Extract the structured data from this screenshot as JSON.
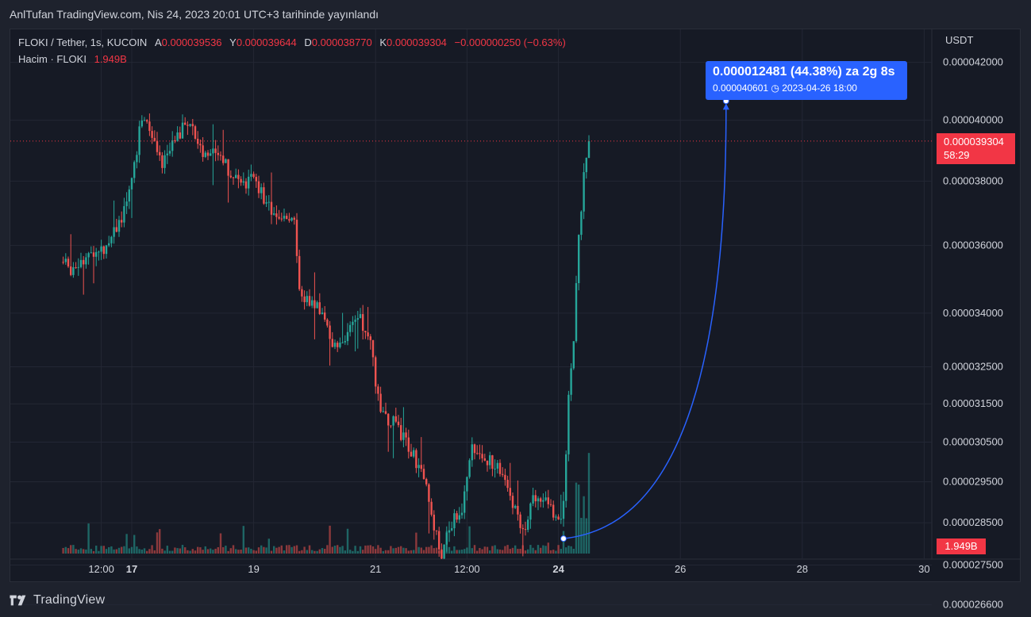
{
  "header": {
    "published_text": "AnlTufan TradingView.com, Nis 24, 2023 20:01 UTC+3 tarihinde yayınlandı"
  },
  "legend": {
    "symbol": "FLOKI / Tether, 1s, KUCOIN",
    "open_label": "A",
    "open_value": "0.000039536",
    "high_label": "Y",
    "high_value": "0.000039644",
    "low_label": "D",
    "low_value": "0.000038770",
    "close_label": "K",
    "close_value": "0.000039304",
    "change": "−0.000000250 (−0.63%)",
    "volume_label": "Hacim · FLOKI",
    "volume_value": "1.949B"
  },
  "price_axis": {
    "unit": "USDT",
    "current_price": "0.000039304",
    "countdown": "58:29",
    "volume_tag": "1.949B"
  },
  "tooltip": {
    "line1": "0.000012481 (44.38%) za 2g 8s",
    "line2": "0.000040601 ◷ 2023-04-26  18:00"
  },
  "footer": {
    "brand": "TradingView"
  },
  "colors": {
    "up": "#26a69a",
    "down": "#ef5350",
    "accent": "#2962ff",
    "price_line": "#f23645",
    "background": "#161a25",
    "grid": "#232734"
  },
  "chart_data": {
    "type": "candlestick",
    "symbol": "FLOKI / Tether",
    "interval": "1h",
    "exchange": "KUCOIN",
    "y_scale": "log",
    "y_ticks": [
      2.66e-05,
      2.75e-05,
      2.85e-05,
      2.95e-05,
      3.05e-05,
      3.15e-05,
      3.25e-05,
      3.4e-05,
      3.6e-05,
      3.8e-05,
      4e-05,
      4.2e-05
    ],
    "y_tick_labels": [
      "0.000026600",
      "0.000027500",
      "0.000028500",
      "0.000029500",
      "0.000030500",
      "0.000031500",
      "0.000032500",
      "0.000034000",
      "0.000036000",
      "0.000038000",
      "0.000040000",
      "0.000042000"
    ],
    "x_tick_labels": [
      "12:00",
      "17",
      "19",
      "21",
      "12:00",
      "24",
      "26",
      "28",
      "30"
    ],
    "x_tick_bold": [
      false,
      true,
      false,
      false,
      false,
      true,
      false,
      false,
      false
    ],
    "x_ticks_hours": [
      -12,
      0,
      48,
      96,
      132,
      168,
      216,
      264,
      312
    ],
    "x_origin": "2023-04-17 00:00",
    "current_price": 3.9304e-05,
    "price_points": [
      [
        -27,
        3.55e-05
      ],
      [
        -24,
        3.53e-05
      ],
      [
        -20,
        3.56e-05
      ],
      [
        -15,
        3.57e-05
      ],
      [
        -10,
        3.6e-05
      ],
      [
        -6,
        3.66e-05
      ],
      [
        -3,
        3.7e-05
      ],
      [
        0,
        3.8e-05
      ],
      [
        3,
        3.96e-05
      ],
      [
        5,
        4e-05
      ],
      [
        8,
        3.93e-05
      ],
      [
        12,
        3.85e-05
      ],
      [
        16,
        3.94e-05
      ],
      [
        20,
        3.97e-05
      ],
      [
        24,
        3.98e-05
      ],
      [
        28,
        3.88e-05
      ],
      [
        34,
        3.9e-05
      ],
      [
        40,
        3.81e-05
      ],
      [
        44,
        3.78e-05
      ],
      [
        48,
        3.82e-05
      ],
      [
        53,
        3.72e-05
      ],
      [
        58,
        3.7e-05
      ],
      [
        62,
        3.68e-05
      ],
      [
        64,
        3.66e-05
      ],
      [
        66,
        3.45e-05
      ],
      [
        70,
        3.43e-05
      ],
      [
        75,
        3.4e-05
      ],
      [
        80,
        3.3e-05
      ],
      [
        84,
        3.34e-05
      ],
      [
        90,
        3.38e-05
      ],
      [
        94,
        3.31e-05
      ],
      [
        98,
        3.12e-05
      ],
      [
        103,
        3.1e-05
      ],
      [
        108,
        3.05e-05
      ],
      [
        112,
        3e-05
      ],
      [
        116,
        2.93e-05
      ],
      [
        118,
        2.87e-05
      ],
      [
        122,
        2.77e-05
      ],
      [
        126,
        2.85e-05
      ],
      [
        130,
        2.89e-05
      ],
      [
        133,
        3.02e-05
      ],
      [
        136,
        3.04e-05
      ],
      [
        140,
        3e-05
      ],
      [
        144,
        3e-05
      ],
      [
        148,
        2.94e-05
      ],
      [
        152,
        2.86e-05
      ],
      [
        155,
        2.83e-05
      ],
      [
        158,
        2.91e-05
      ],
      [
        162,
        2.92e-05
      ],
      [
        166,
        2.87e-05
      ],
      [
        168,
        2.85e-05
      ],
      [
        170,
        2.9e-05
      ],
      [
        172,
        3.16e-05
      ],
      [
        174,
        3.33e-05
      ],
      [
        176,
        3.62e-05
      ],
      [
        178,
        3.81e-05
      ],
      [
        180,
        3.93e-05
      ]
    ],
    "volume_last_bar": "1.949B",
    "projection": {
      "from_price": 2.812e-05,
      "to_price": 4.0601e-05,
      "change": "0.000012481",
      "change_pct": "44.38%",
      "duration": "2g 8s",
      "target_time": "2023-04-26 18:00"
    }
  }
}
